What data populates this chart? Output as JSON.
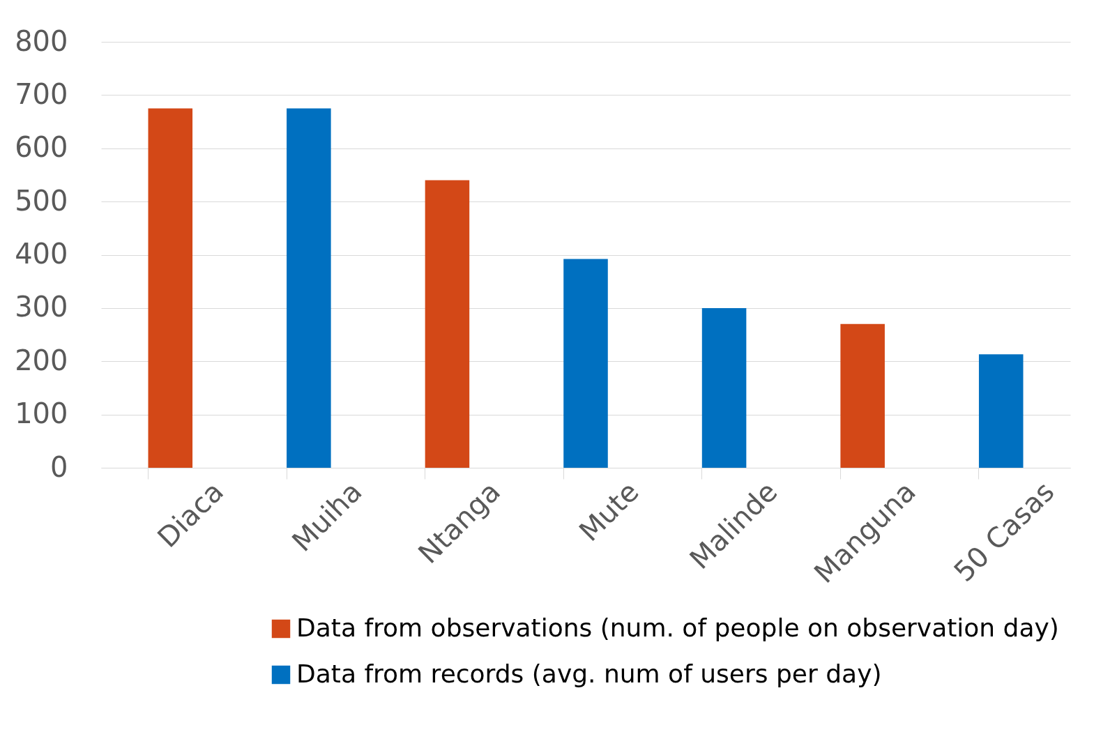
{
  "chart_data": {
    "type": "bar",
    "categories": [
      "Diaca",
      "Muiha",
      "Ntanga",
      "Mute",
      "Malinde",
      "Manguna",
      "50 Casas"
    ],
    "series": [
      {
        "name": "Data from observations (num. of people on observation day)",
        "color": "#d34817",
        "values": [
          675,
          null,
          540,
          null,
          null,
          270,
          null
        ]
      },
      {
        "name": "Data from records (avg. num of users per day)",
        "color": "#0070c0",
        "values": [
          null,
          675,
          null,
          392,
          300,
          null,
          213
        ]
      }
    ],
    "ylim": [
      0,
      800
    ],
    "yticks": [
      0,
      100,
      200,
      300,
      400,
      500,
      600,
      700,
      800
    ],
    "grid": "y",
    "legend": "bottom"
  }
}
